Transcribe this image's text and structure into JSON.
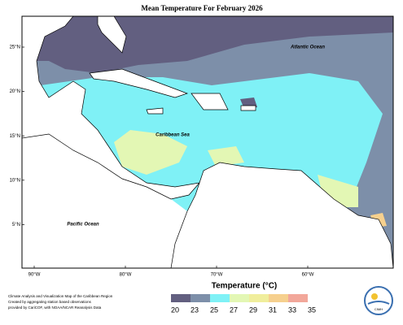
{
  "title": "Mean Temperature For February 2026",
  "map": {
    "labels": {
      "atlantic": "Atlantic Ocean",
      "caribbean": "Caribbean Sea",
      "pacific": "Pacific Ocean"
    },
    "lat_labels": [
      "25°N",
      "20°N",
      "15°N",
      "10°N",
      "5°N"
    ],
    "lon_labels": [
      "90°W",
      "80°W",
      "70°W",
      "60°W"
    ]
  },
  "legend": {
    "title": "Temperature (°C)",
    "ticks": [
      20,
      23,
      25,
      27,
      29,
      31,
      33,
      35
    ],
    "colors": [
      "#625f80",
      "#7d8fa9",
      "#7ff1f6",
      "#e3f7b4",
      "#f0ee9c",
      "#f6d08e",
      "#f2a79a"
    ]
  },
  "credit": [
    "Climate Analysis and Visualization Map of the Caribbean Region",
    "Created by aggregating station based observations",
    "provided by CariCOF, with NOAA/NCAR Reanalysis Data"
  ],
  "logo": "CIMH"
}
